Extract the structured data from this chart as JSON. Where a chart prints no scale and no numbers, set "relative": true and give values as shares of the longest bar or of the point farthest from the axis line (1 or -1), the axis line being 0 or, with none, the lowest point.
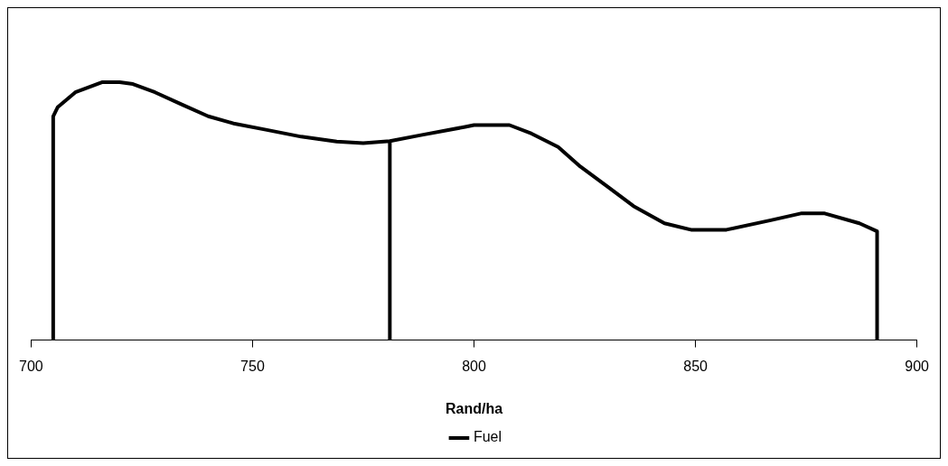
{
  "chart_data": {
    "type": "line",
    "xlabel": "Rand/ha",
    "relative": true,
    "xlim": [
      700,
      900
    ],
    "xticks": [
      700,
      750,
      800,
      850,
      900
    ],
    "grid": false,
    "legend": "bottom",
    "marker": "none",
    "line_style": "solid",
    "series": [
      {
        "name": "Fuel",
        "color": "#000000",
        "x": [
          705,
          705,
          706,
          710,
          716,
          720,
          723,
          728,
          734,
          740,
          746,
          753,
          761,
          769,
          775,
          781,
          781,
          781,
          788,
          798,
          800,
          808,
          813,
          819,
          824,
          830,
          836,
          843,
          849,
          857,
          867,
          874,
          879,
          887,
          891,
          891
        ],
        "values": [
          0,
          0.868,
          0.903,
          0.961,
          1,
          1,
          0.993,
          0.961,
          0.914,
          0.868,
          0.839,
          0.816,
          0.789,
          0.77,
          0.764,
          0.772,
          0,
          0.772,
          0.795,
          0.827,
          0.834,
          0.834,
          0.801,
          0.749,
          0.673,
          0.597,
          0.52,
          0.453,
          0.428,
          0.428,
          0.465,
          0.492,
          0.492,
          0.453,
          0.422,
          0
        ]
      }
    ]
  }
}
